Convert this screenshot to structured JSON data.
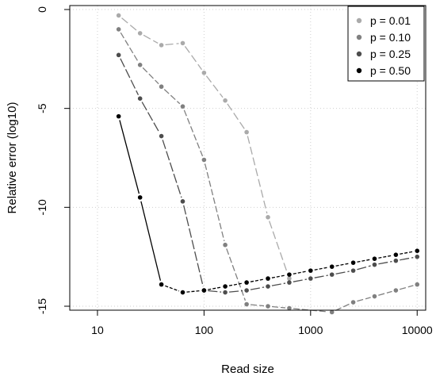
{
  "chart_data": {
    "type": "line",
    "title": "",
    "xlabel": "Read size",
    "ylabel": "Relative error (log10)",
    "x_scale": "log",
    "xlim": [
      10,
      10000
    ],
    "ylim": [
      -15.2,
      0.2
    ],
    "x_ticks": [
      10,
      100,
      1000,
      10000
    ],
    "x_tick_labels": [
      "10",
      "100",
      "1000",
      "10000"
    ],
    "y_ticks": [
      0,
      -5,
      -10,
      -15
    ],
    "y_tick_labels": [
      "0",
      "-5",
      "-10",
      "-15"
    ],
    "grid": true,
    "legend_position": "top-right",
    "series": [
      {
        "name": "p = 0.01",
        "color": "#aaaaaa",
        "x": [
          15.8,
          25.1,
          39.8,
          63.1,
          100,
          158,
          251,
          398,
          631
        ],
        "y": [
          -0.3,
          -1.2,
          -1.8,
          -1.7,
          -3.2,
          -4.6,
          -6.2,
          -10.5,
          -13.6
        ]
      },
      {
        "name": "p = 0.10",
        "color": "#808080",
        "x": [
          15.8,
          25.1,
          39.8,
          63.1,
          100,
          158,
          251,
          398,
          631,
          1585,
          2512,
          3981,
          6310,
          10000
        ],
        "y": [
          -1.0,
          -2.8,
          -3.9,
          -4.9,
          -7.6,
          -11.9,
          -14.9,
          -15.0,
          -15.1,
          -15.3,
          -14.8,
          -14.5,
          -14.2,
          -13.9
        ]
      },
      {
        "name": "p = 0.25",
        "color": "#4d4d4d",
        "x": [
          15.8,
          25.1,
          39.8,
          63.1,
          100,
          158,
          251,
          398,
          631,
          1000,
          1585,
          2512,
          3981,
          6310,
          10000
        ],
        "y": [
          -2.3,
          -4.5,
          -6.4,
          -9.7,
          -14.2,
          -14.3,
          -14.2,
          -14.0,
          -13.8,
          -13.6,
          -13.4,
          -13.2,
          -12.9,
          -12.7,
          -12.5
        ]
      },
      {
        "name": "p = 0.50",
        "color": "#000000",
        "x": [
          15.8,
          25.1,
          39.8,
          63.1,
          100,
          158,
          251,
          398,
          631,
          1000,
          1585,
          2512,
          3981,
          6310,
          10000
        ],
        "y": [
          -5.4,
          -9.5,
          -13.9,
          -14.3,
          -14.2,
          -14.0,
          -13.8,
          -13.6,
          -13.4,
          -13.2,
          -13.0,
          -12.8,
          -12.6,
          -12.4,
          -12.2
        ]
      }
    ]
  }
}
